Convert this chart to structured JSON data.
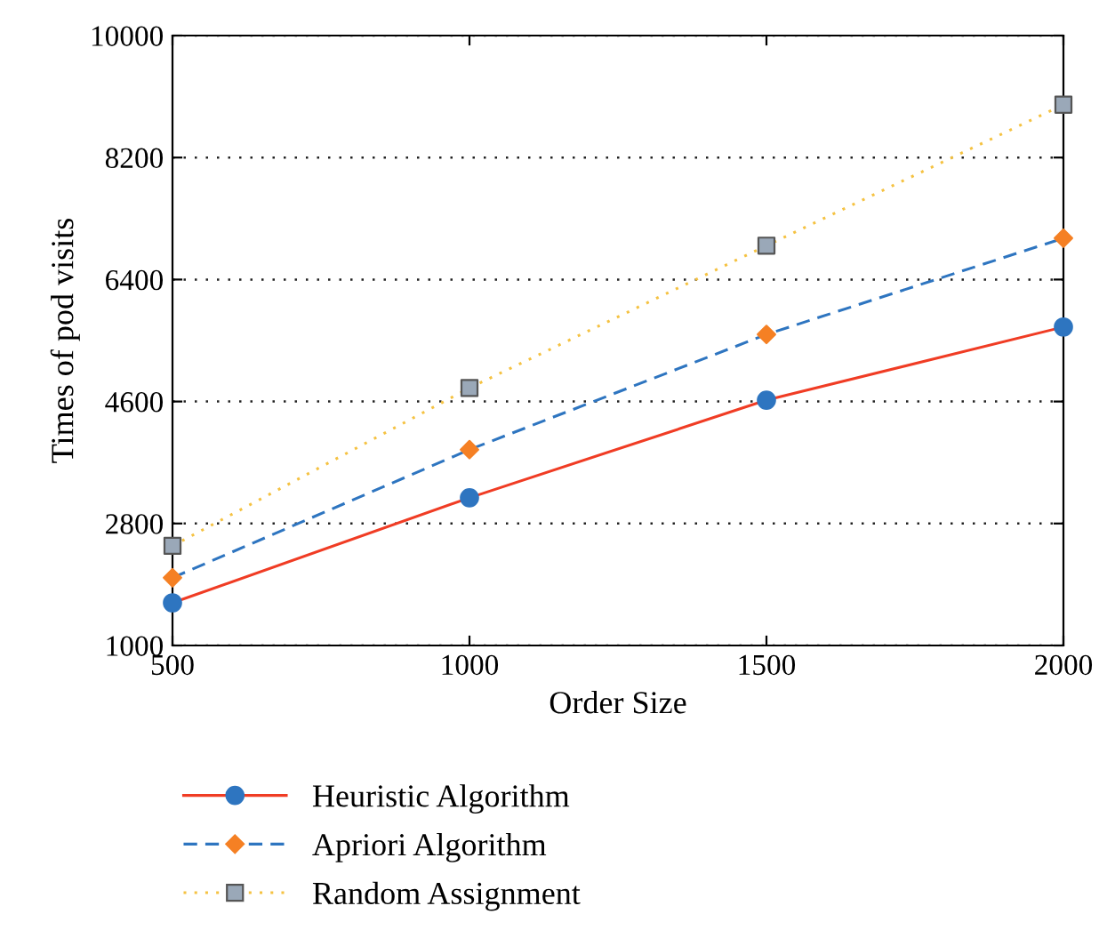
{
  "chart_data": {
    "type": "line",
    "xlabel": "Order Size",
    "ylabel": "Times of pod visits",
    "x": [
      500,
      1000,
      1500,
      2000
    ],
    "series": [
      {
        "name": "Heuristic Algorithm",
        "color": "#f03c24",
        "values": [
          1630,
          3180,
          4620,
          5700
        ],
        "marker": "circle",
        "colors": [
          "#2e75c0",
          "#2e75c0",
          "#2e75c0",
          "#2e75c0"
        ],
        "line_style": "solid"
      },
      {
        "name": "Apriori Algorithm",
        "color": "#2e75c0",
        "values": [
          2000,
          3890,
          5590,
          7010
        ],
        "marker": "diamond",
        "colors": [
          "#f58024",
          "#f58024",
          "#f58024",
          "#f58024"
        ],
        "line_style": "dashed"
      },
      {
        "name": "Random Assignment",
        "color": "#f5c242",
        "values": [
          2470,
          4800,
          6900,
          8980
        ],
        "marker": "square",
        "colors": [
          "#9aa8b8",
          "#9aa8b8",
          "#9aa8b8",
          "#9aa8b8"
        ],
        "line_style": "dotted"
      }
    ],
    "xlim": [
      500,
      2000
    ],
    "xticks": [
      500,
      1000,
      1500,
      2000
    ],
    "ylim": [
      1000,
      10000
    ],
    "yticks": [
      1000,
      2800,
      4600,
      6400,
      8200,
      10000
    ],
    "grid": "y",
    "legend": "bottom"
  }
}
